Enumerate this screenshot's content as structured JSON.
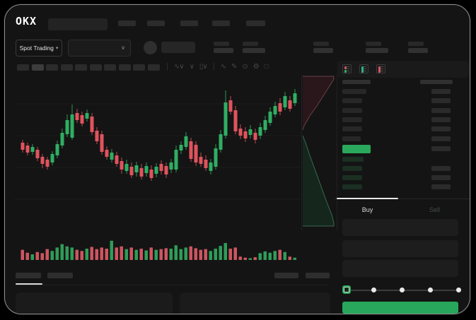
{
  "brand": {
    "logo_text": "OKX"
  },
  "header": {
    "nav_placeholder_count": 5
  },
  "market_bar": {
    "market_type_selector": {
      "label": "Spot Trading"
    },
    "stats_placeholder_count": 5
  },
  "chart_toolbar": {
    "timeframe_placeholder_count": 10,
    "active_timeframe_index": 1,
    "tools": [
      "chart-type",
      "compare",
      "candle-style",
      "indicators",
      "draw",
      "snapshot",
      "settings",
      "fullscreen"
    ]
  },
  "chart_data": {
    "type": "candlestick",
    "title": "",
    "xlabel": "",
    "ylabel": "",
    "grid": true,
    "gridline_count": 4,
    "candles": [
      [
        128,
        132,
        114,
        118
      ],
      [
        124,
        128,
        110,
        114
      ],
      [
        115,
        126,
        111,
        122
      ],
      [
        118,
        122,
        102,
        106
      ],
      [
        108,
        112,
        92,
        98
      ],
      [
        104,
        108,
        90,
        94
      ],
      [
        100,
        116,
        96,
        112
      ],
      [
        110,
        131,
        106,
        126
      ],
      [
        124,
        148,
        120,
        142
      ],
      [
        140,
        168,
        136,
        160
      ],
      [
        135,
        182,
        132,
        168
      ],
      [
        170,
        176,
        156,
        160
      ],
      [
        167,
        172,
        151,
        155
      ],
      [
        162,
        175,
        158,
        170
      ],
      [
        165,
        170,
        139,
        143
      ],
      [
        145,
        150,
        126,
        130
      ],
      [
        140,
        145,
        111,
        115
      ],
      [
        118,
        123,
        104,
        108
      ],
      [
        104,
        119,
        100,
        114
      ],
      [
        110,
        115,
        94,
        98
      ],
      [
        102,
        107,
        84,
        90
      ],
      [
        88,
        104,
        84,
        98
      ],
      [
        94,
        100,
        78,
        82
      ],
      [
        86,
        101,
        80,
        96
      ],
      [
        92,
        98,
        76,
        80
      ],
      [
        85,
        100,
        80,
        95
      ],
      [
        90,
        96,
        74,
        78
      ],
      [
        84,
        99,
        79,
        94
      ],
      [
        98,
        103,
        83,
        88
      ],
      [
        95,
        100,
        78,
        83
      ],
      [
        90,
        105,
        85,
        100
      ],
      [
        90,
        124,
        86,
        118
      ],
      [
        117,
        130,
        112,
        125
      ],
      [
        122,
        143,
        118,
        137
      ],
      [
        130,
        135,
        101,
        105
      ],
      [
        125,
        130,
        95,
        100
      ],
      [
        108,
        114,
        94,
        98
      ],
      [
        104,
        110,
        88,
        92
      ],
      [
        88,
        105,
        83,
        100
      ],
      [
        94,
        126,
        90,
        120
      ],
      [
        118,
        146,
        114,
        140
      ],
      [
        138,
        202,
        134,
        185
      ],
      [
        188,
        194,
        168,
        172
      ],
      [
        174,
        180,
        140,
        144
      ],
      [
        148,
        154,
        133,
        138
      ],
      [
        144,
        150,
        129,
        134
      ],
      [
        139,
        153,
        134,
        147
      ],
      [
        142,
        148,
        127,
        132
      ],
      [
        138,
        156,
        133,
        150
      ],
      [
        146,
        166,
        142,
        160
      ],
      [
        156,
        178,
        152,
        172
      ],
      [
        168,
        186,
        164,
        180
      ],
      [
        184,
        191,
        167,
        172
      ],
      [
        178,
        200,
        174,
        194
      ],
      [
        188,
        194,
        172,
        176
      ],
      [
        184,
        204,
        180,
        198
      ]
    ],
    "volumes": [
      45,
      32,
      25,
      35,
      30,
      48,
      40,
      55,
      70,
      60,
      55,
      45,
      40,
      50,
      58,
      48,
      55,
      50,
      85,
      55,
      60,
      48,
      55,
      45,
      50,
      42,
      55,
      45,
      48,
      52,
      50,
      65,
      48,
      55,
      60,
      52,
      45,
      48,
      40,
      50,
      62,
      75,
      50,
      55,
      15,
      10,
      8,
      12,
      30,
      38,
      32,
      40,
      45,
      35,
      15,
      10
    ],
    "colors": {
      "up": "#2fae63",
      "down": "#e0535e",
      "volume_up": "#2f9c59",
      "volume_down": "#cd5560"
    },
    "depth_preview": {
      "asks_fill": "#2a171b",
      "asks_line": "#6b3f45",
      "bids_fill": "#15271d",
      "bids_line": "#3c6850"
    }
  },
  "order_book": {
    "view_options": [
      "combined-view",
      "bids-view",
      "asks-view"
    ],
    "asks": [
      {
        "price_w": 34,
        "amount_w": 27
      },
      {
        "price_w": 28,
        "amount_w": 27
      },
      {
        "price_w": 28,
        "amount_w": 27
      },
      {
        "price_w": 28,
        "amount_w": 27
      },
      {
        "price_w": 28,
        "amount_w": 27
      },
      {
        "price_w": 26,
        "amount_w": 27
      }
    ],
    "last_price": {
      "highlight_color": "#2aa85c",
      "amount_w": 27
    },
    "bids": [
      {
        "price_w": 30,
        "amount_w": 0
      },
      {
        "price_w": 28,
        "amount_w": 27
      },
      {
        "price_w": 28,
        "amount_w": 27
      },
      {
        "price_w": 28,
        "amount_w": 27
      }
    ]
  },
  "trade_panel": {
    "tabs": [
      {
        "label": "Buy",
        "active": true
      },
      {
        "label": "Sell",
        "active": false
      }
    ],
    "fields_count": 3,
    "slider": {
      "stops": 5,
      "active_index": 0
    },
    "submit": {
      "color": "#28a65b",
      "label": ""
    }
  },
  "bottom_bar": {
    "tab_placeholder_count": 2,
    "active_tab_index": 0,
    "right_placeholder_count": 2,
    "panels_count": 2
  }
}
